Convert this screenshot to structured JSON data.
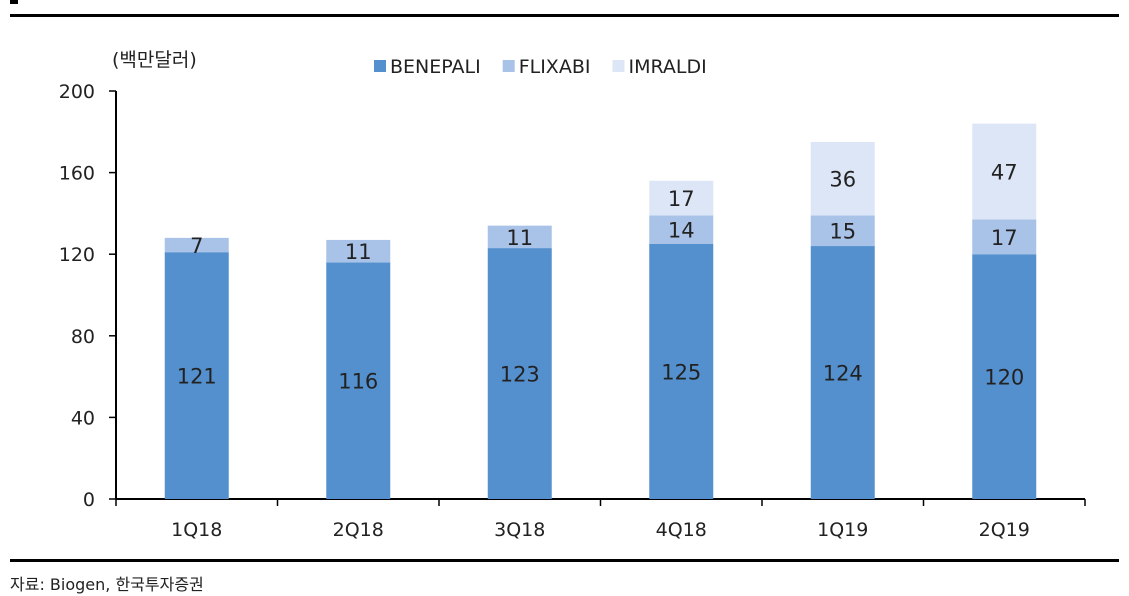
{
  "chart_data": {
    "type": "bar",
    "stacked": true,
    "unit_label": "(백만달러)",
    "categories": [
      "1Q18",
      "2Q18",
      "3Q18",
      "4Q18",
      "1Q19",
      "2Q19"
    ],
    "series": [
      {
        "name": "BENEPALI",
        "color": "#5590CE",
        "values": [
          121,
          116,
          123,
          125,
          124,
          120
        ]
      },
      {
        "name": "FLIXABI",
        "color": "#A9C3E8",
        "values": [
          7,
          11,
          11,
          14,
          15,
          17
        ]
      },
      {
        "name": "IMRALDI",
        "color": "#DDE6F6",
        "values": [
          null,
          null,
          null,
          17,
          36,
          47
        ]
      }
    ],
    "ylim": [
      0,
      200
    ],
    "yticks": [
      0,
      40,
      80,
      120,
      160,
      200
    ],
    "legend_position": "top",
    "grid": false
  },
  "source_text": "자료: Biogen, 한국투자증권"
}
